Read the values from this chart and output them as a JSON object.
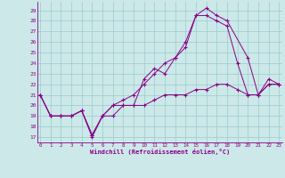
{
  "xlabel": "Windchill (Refroidissement éolien,°C)",
  "line_color": "#880088",
  "bg_color": "#cce8e8",
  "grid_color": "#99cccc",
  "xticks": [
    0,
    1,
    2,
    3,
    4,
    5,
    6,
    7,
    8,
    9,
    10,
    11,
    12,
    13,
    14,
    15,
    16,
    17,
    18,
    19,
    20,
    21,
    22,
    23
  ],
  "yticks": [
    17,
    18,
    19,
    20,
    21,
    22,
    23,
    24,
    25,
    26,
    27,
    28,
    29
  ],
  "line1_x": [
    0,
    1,
    2,
    3,
    4,
    5,
    6,
    7,
    8,
    9,
    10,
    11,
    12,
    13,
    14,
    15,
    16,
    17,
    18,
    19,
    20,
    21,
    22,
    23
  ],
  "line1_y": [
    21,
    19,
    19,
    19,
    19.5,
    17,
    19,
    20,
    20,
    20,
    20,
    20.5,
    21,
    21,
    21,
    21.5,
    21.5,
    22,
    22,
    21.5,
    21,
    21,
    22,
    22
  ],
  "line2_x": [
    0,
    1,
    2,
    3,
    4,
    5,
    6,
    7,
    8,
    9,
    10,
    11,
    12,
    13,
    14,
    15,
    16,
    17,
    18,
    20,
    21,
    22,
    23
  ],
  "line2_y": [
    21,
    19,
    19,
    19,
    19.5,
    17.2,
    19,
    19,
    20,
    20,
    22.5,
    23.5,
    23,
    24.5,
    25.5,
    28.5,
    29.2,
    28.5,
    28,
    24.5,
    21,
    22,
    22
  ],
  "line3_x": [
    0,
    1,
    2,
    3,
    4,
    5,
    6,
    7,
    8,
    9,
    10,
    11,
    12,
    13,
    14,
    15,
    16,
    17,
    18,
    19,
    20,
    21,
    22,
    23
  ],
  "line3_y": [
    21,
    19,
    19,
    19,
    19.5,
    17.2,
    19,
    20,
    20.5,
    21,
    22,
    23,
    24,
    24.5,
    26,
    28.5,
    28.5,
    28,
    27.5,
    24,
    21,
    21,
    22.5,
    22
  ]
}
